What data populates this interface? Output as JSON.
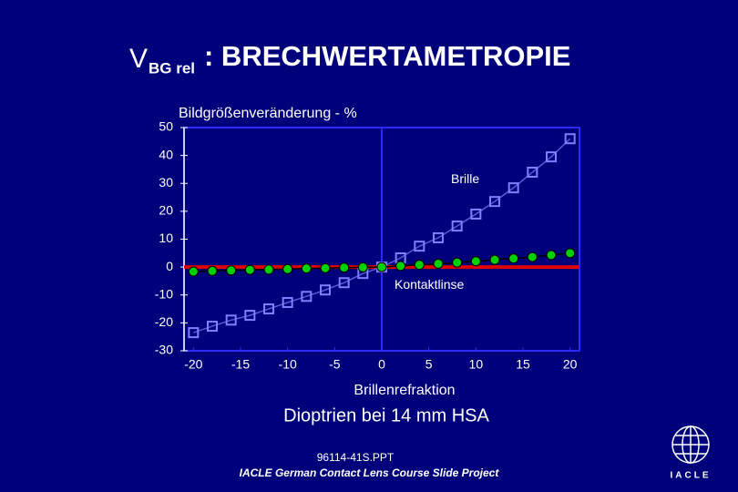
{
  "chart_data": {
    "type": "line",
    "title": "V",
    "title_subscript": "BG rel",
    "title_rest": ": BRECHWERTAMETROPIE",
    "y_label": "Bildgrößenveränderung - %",
    "x_label": "Brillenrefraktion",
    "x_sublabel": "Dioptrien bei 14 mm HSA",
    "x": [
      -20,
      -18,
      -16,
      -14,
      -12,
      -10,
      -8,
      -6,
      -4,
      -2,
      0,
      2,
      4,
      6,
      8,
      10,
      12,
      14,
      16,
      18,
      20
    ],
    "series": [
      {
        "name": "Brille",
        "color": "#7f7fff",
        "marker": "square",
        "values": [
          -23.5,
          -21.2,
          -19,
          -17.3,
          -15,
          -12.7,
          -10.5,
          -8.2,
          -5.6,
          -2.3,
          0,
          3.3,
          7.5,
          10.5,
          14.7,
          19,
          23.5,
          28.4,
          34,
          39.5,
          46
        ]
      },
      {
        "name": "Kontaktlinse",
        "color": "#00d000",
        "marker": "circle",
        "values": [
          -1.6,
          -1.4,
          -1.2,
          -1,
          -0.9,
          -0.7,
          -0.5,
          -0.4,
          -0.2,
          -0.1,
          0,
          0.4,
          0.8,
          1.2,
          1.6,
          2.1,
          2.6,
          3.1,
          3.6,
          4.3,
          5
        ]
      }
    ],
    "reference_line": {
      "value": 0,
      "color": "#e00000"
    },
    "xlim": [
      -21,
      21
    ],
    "ylim": [
      -30,
      50
    ],
    "xticks": [
      -20,
      -15,
      -10,
      -5,
      0,
      5,
      10,
      15,
      20
    ],
    "yticks": [
      50,
      40,
      30,
      20,
      10,
      0,
      -10,
      -20,
      -30
    ]
  },
  "footer": {
    "file": "96114-41S.PPT",
    "project": "IACLE German Contact Lens Course Slide Project",
    "logo": "IACLE"
  }
}
